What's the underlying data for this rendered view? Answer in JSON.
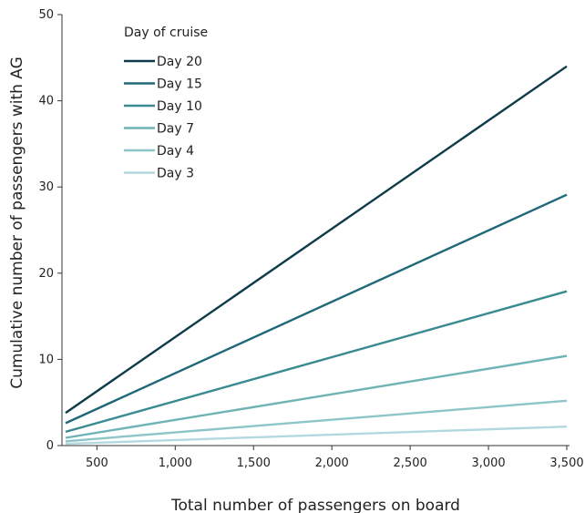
{
  "chart_data": {
    "type": "line",
    "xlabel": "Total number of passengers on board",
    "ylabel": "Cumulative number of passengers with AG",
    "xlim": [
      300,
      3500
    ],
    "ylim": [
      0,
      50
    ],
    "xticks": [
      500,
      1000,
      1500,
      2000,
      2500,
      3000,
      3500
    ],
    "xtick_labels": [
      "500",
      "1,000",
      "1,500",
      "2,000",
      "2,500",
      "3,000",
      "3,500"
    ],
    "yticks": [
      0,
      10,
      20,
      30,
      40,
      50
    ],
    "ytick_labels": [
      "0",
      "10",
      "20",
      "30",
      "40",
      "50"
    ],
    "grid": false,
    "legend": {
      "title": "Day of cruise",
      "position": "top-left"
    },
    "series": [
      {
        "name": "Day 20",
        "color": "#0e3b4a",
        "x": [
          300,
          3500
        ],
        "y": [
          3.8,
          44.0
        ]
      },
      {
        "name": "Day 15",
        "color": "#1f6878",
        "x": [
          300,
          3500
        ],
        "y": [
          2.6,
          29.1
        ]
      },
      {
        "name": "Day 10",
        "color": "#3a8a92",
        "x": [
          300,
          3500
        ],
        "y": [
          1.6,
          17.9
        ]
      },
      {
        "name": "Day 7",
        "color": "#6eb4b6",
        "x": [
          300,
          3500
        ],
        "y": [
          0.9,
          10.4
        ]
      },
      {
        "name": "Day 4",
        "color": "#8ec5c9",
        "x": [
          300,
          3500
        ],
        "y": [
          0.5,
          5.2
        ]
      },
      {
        "name": "Day 3",
        "color": "#b3d8df",
        "x": [
          300,
          3500
        ],
        "y": [
          0.2,
          2.2
        ]
      }
    ]
  }
}
